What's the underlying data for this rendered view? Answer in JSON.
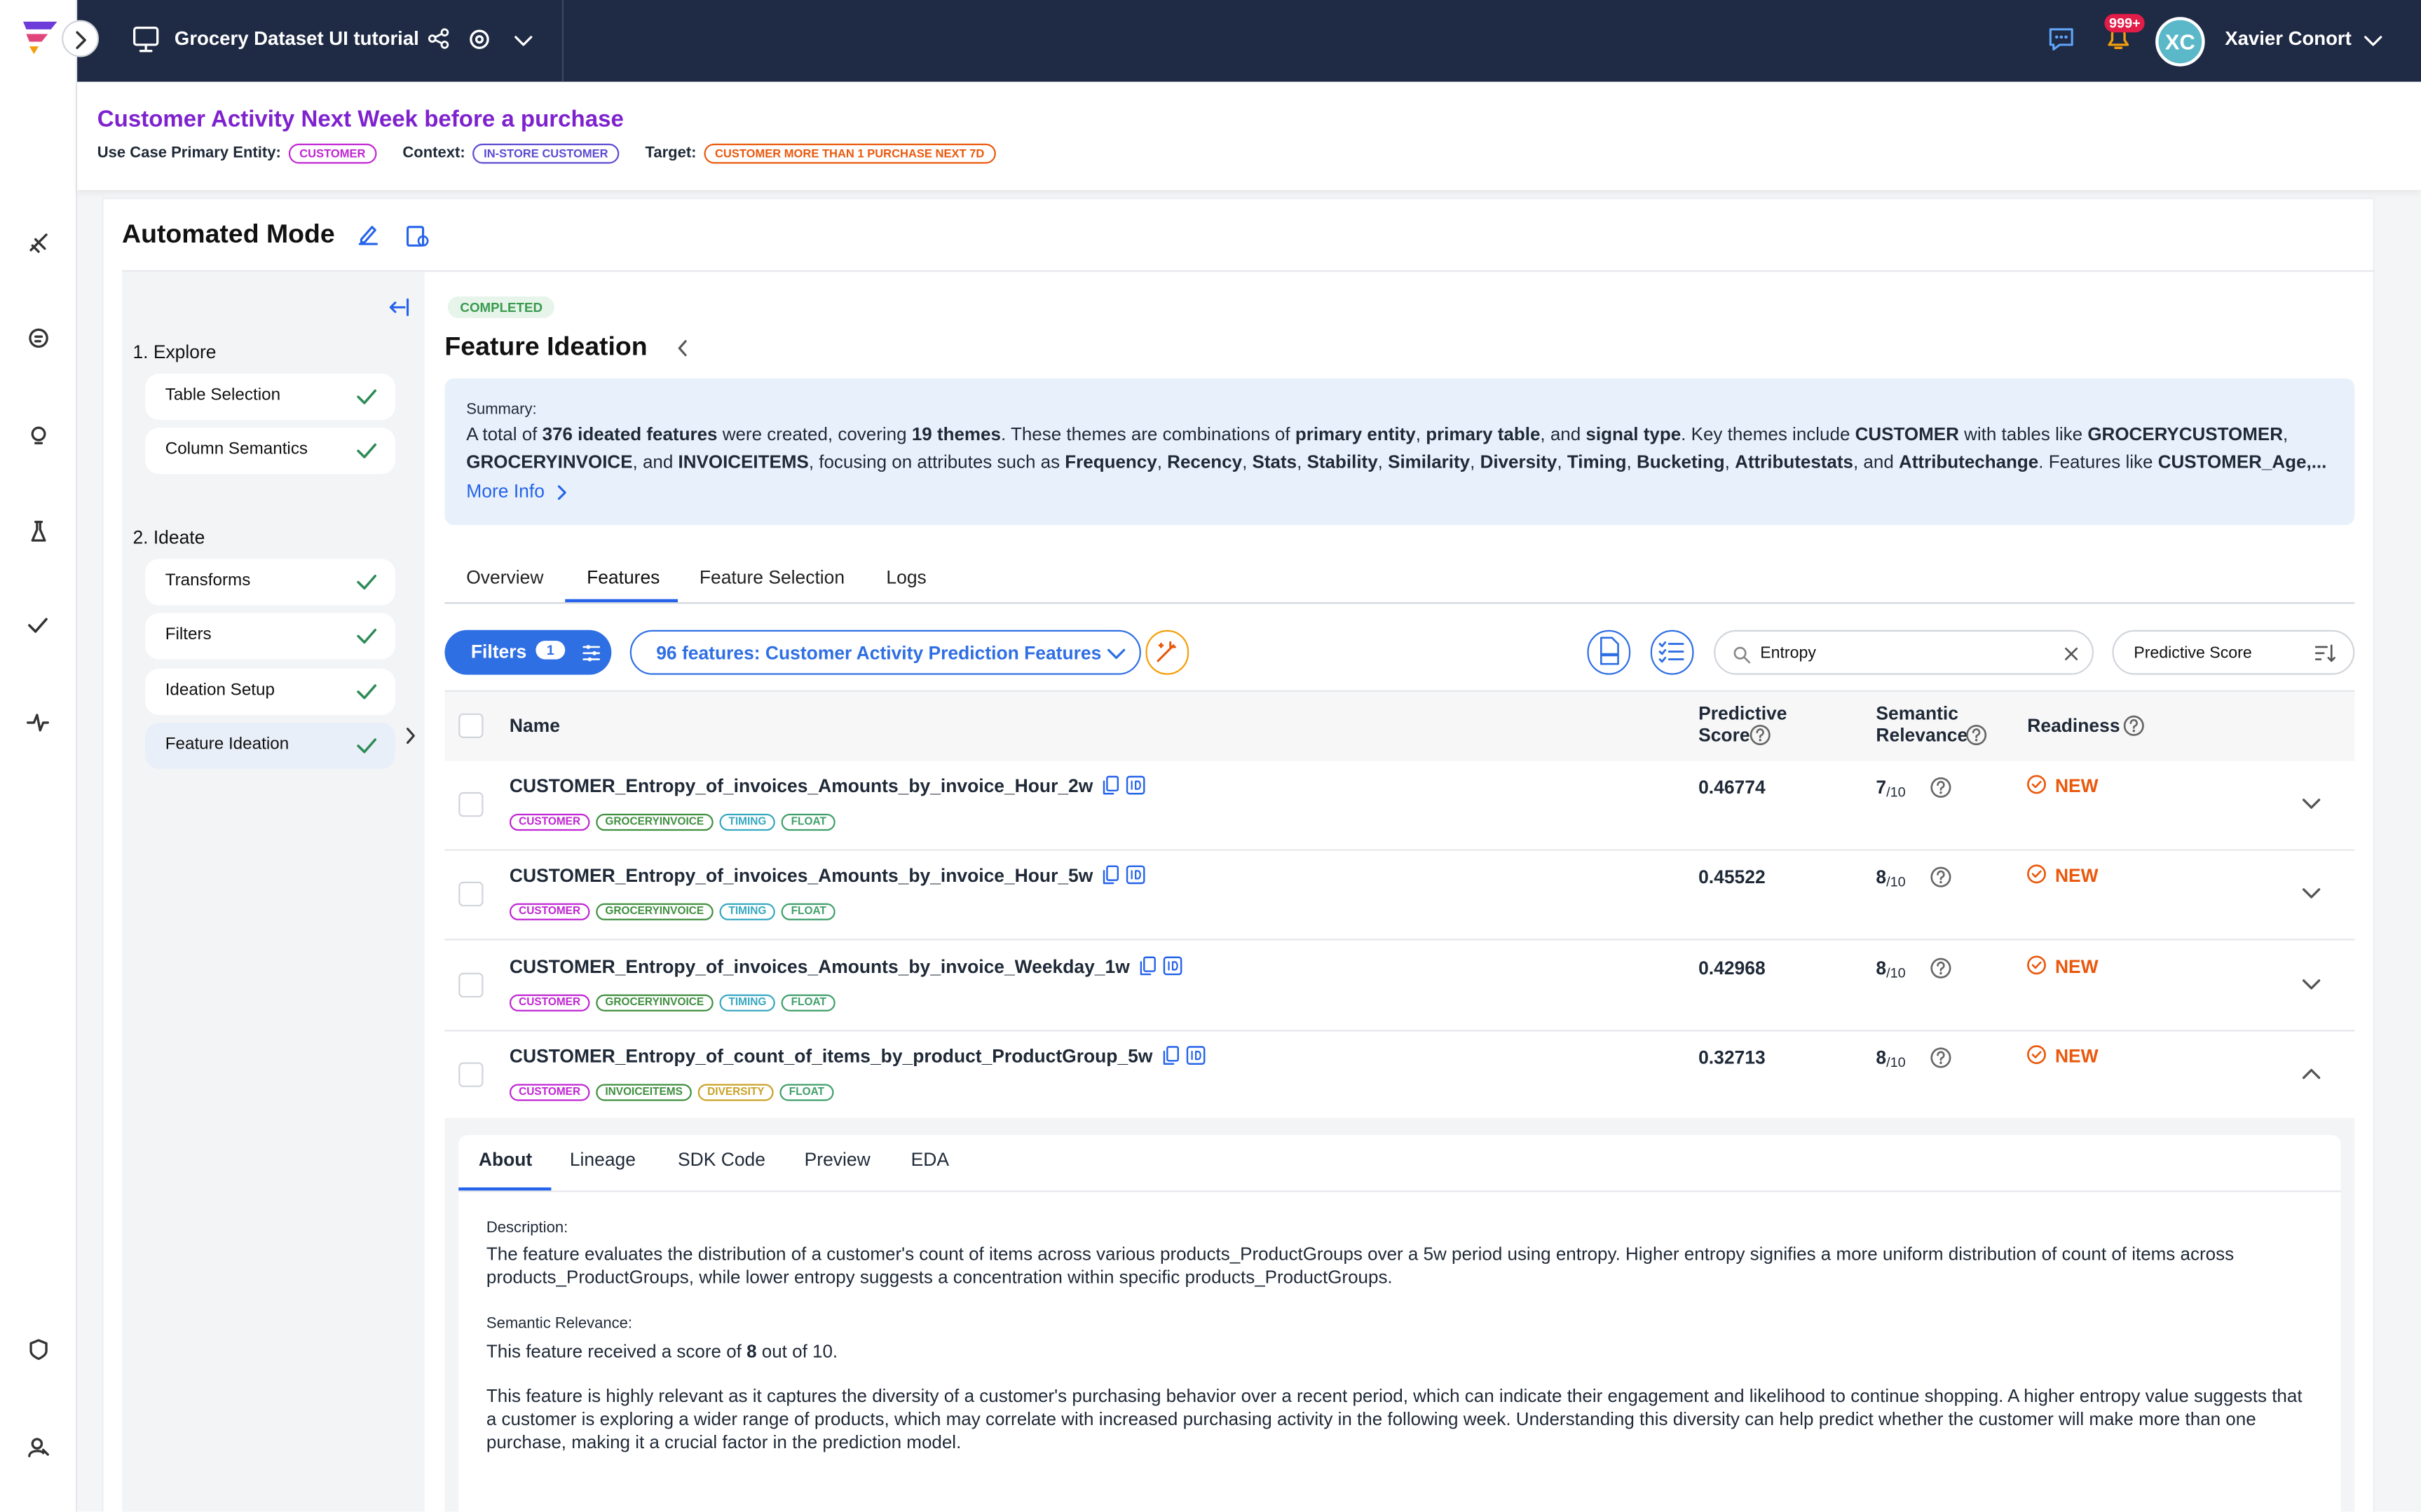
{
  "header": {
    "project": "Grocery Dataset UI tutorial",
    "badge": "999+",
    "initials": "XC",
    "user": "Xavier Conort"
  },
  "use_case": {
    "title": "Customer Activity Next Week before a purchase",
    "entity_label": "Use Case Primary Entity:",
    "entity": "CUSTOMER",
    "context_label": "Context:",
    "context": "IN-STORE CUSTOMER",
    "target_label": "Target:",
    "target": "CUSTOMER MORE THAN 1 PURCHASE NEXT 7D"
  },
  "mode": "Automated Mode",
  "steps": [
    {
      "title": "1. Explore",
      "items": [
        "Table Selection",
        "Column Semantics"
      ]
    },
    {
      "title": "2. Ideate",
      "items": [
        "Transforms",
        "Filters",
        "Ideation Setup",
        "Feature Ideation"
      ]
    }
  ],
  "status": "COMPLETED",
  "section_title": "Feature Ideation",
  "summary": {
    "label": "Summary:",
    "parts": [
      "A total of ",
      "376 ideated features",
      " were created, covering ",
      "19 themes",
      ". These themes are combinations of ",
      "primary entity",
      ", ",
      "primary table",
      ", and ",
      "signal type",
      ". Key themes include ",
      "CUSTOMER",
      " with tables like ",
      "GROCERYCUSTOMER",
      ", ",
      "GROCERYINVOICE",
      ", and ",
      "INVOICEITEMS",
      ", focusing on attributes such as ",
      "Frequency",
      ", ",
      "Recency",
      ", ",
      "Stats",
      ", ",
      "Stability",
      ", ",
      "Similarity",
      ", ",
      "Diversity",
      ", ",
      "Timing",
      ", ",
      "Bucketing",
      ", ",
      "Attributestats",
      ", and ",
      "Attributechange",
      ". Features like ",
      "CUSTOMER_Age,..."
    ],
    "more": "More Info"
  },
  "tabs": [
    "Overview",
    "Features",
    "Feature Selection",
    "Logs"
  ],
  "active_tab": 1,
  "toolbar": {
    "filters": "Filters",
    "filter_count": 1,
    "feature_set": "96 features: Customer Activity Prediction Features",
    "search": "Entropy",
    "sort": "Predictive Score"
  },
  "columns": [
    "Name",
    "Predictive Score",
    "Semantic Relevance",
    "Readiness"
  ],
  "rows": [
    {
      "name": "CUSTOMER_Entropy_of_invoices_Amounts_by_invoice_Hour_2w",
      "tags": [
        {
          "text": "CUSTOMER",
          "color": "#c026d3"
        },
        {
          "text": "GROCERYINVOICE",
          "color": "#3f8f3f"
        },
        {
          "text": "TIMING",
          "color": "#38a8c0"
        },
        {
          "text": "FLOAT",
          "color": "#3f9f6a"
        }
      ],
      "score": 0.46774,
      "relevance": 7,
      "scale": "/10",
      "readiness": "NEW"
    },
    {
      "name": "CUSTOMER_Entropy_of_invoices_Amounts_by_invoice_Hour_5w",
      "tags": [
        {
          "text": "CUSTOMER",
          "color": "#c026d3"
        },
        {
          "text": "GROCERYINVOICE",
          "color": "#3f8f3f"
        },
        {
          "text": "TIMING",
          "color": "#38a8c0"
        },
        {
          "text": "FLOAT",
          "color": "#3f9f6a"
        }
      ],
      "score": 0.45522,
      "relevance": 8,
      "scale": "/10",
      "readiness": "NEW"
    },
    {
      "name": "CUSTOMER_Entropy_of_invoices_Amounts_by_invoice_Weekday_1w",
      "tags": [
        {
          "text": "CUSTOMER",
          "color": "#c026d3"
        },
        {
          "text": "GROCERYINVOICE",
          "color": "#3f8f3f"
        },
        {
          "text": "TIMING",
          "color": "#38a8c0"
        },
        {
          "text": "FLOAT",
          "color": "#3f9f6a"
        }
      ],
      "score": 0.42968,
      "relevance": 8,
      "scale": "/10",
      "readiness": "NEW"
    },
    {
      "name": "CUSTOMER_Entropy_of_count_of_items_by_product_ProductGroup_5w",
      "tags": [
        {
          "text": "CUSTOMER",
          "color": "#c026d3"
        },
        {
          "text": "INVOICEITEMS",
          "color": "#3f8f3f"
        },
        {
          "text": "DIVERSITY",
          "color": "#c9a227"
        },
        {
          "text": "FLOAT",
          "color": "#3f9f6a"
        }
      ],
      "score": 0.32713,
      "relevance": 8,
      "scale": "/10",
      "readiness": "NEW"
    }
  ],
  "detail": {
    "tabs": [
      "About",
      "Lineage",
      "SDK Code",
      "Preview",
      "EDA"
    ],
    "active_tab": 0,
    "description_label": "Description:",
    "description": "The feature evaluates the distribution of a customer's count of items across various products_ProductGroups over a 5w period using entropy. Higher entropy signifies a more uniform distribution of count of items across products_ProductGroups, while lower entropy suggests a concentration within specific products_ProductGroups.",
    "relevance_label": "Semantic Relevance:",
    "score_parts": [
      "This feature received a score of ",
      "8",
      " out of 10."
    ],
    "explanation": "This feature is highly relevant as it captures the diversity of a customer's purchasing behavior over a recent period, which can indicate their engagement and likelihood to continue shopping. A higher entropy value suggests that a customer is exploring a wider range of products, which may correlate with increased purchasing activity in the following week. Understanding this diversity can help predict whether the customer will make more than one purchase, making it a crucial factor in the prediction model."
  }
}
